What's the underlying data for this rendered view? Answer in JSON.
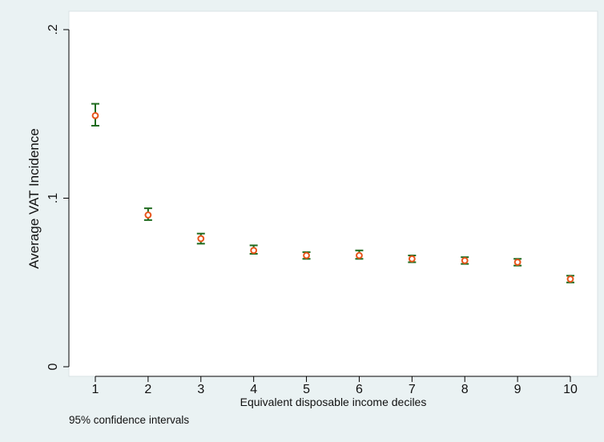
{
  "chart_data": {
    "type": "scatter",
    "title": "",
    "xlabel": "Equivalent disposable income deciles",
    "ylabel": "Average VAT Incidence",
    "note": "95% confidence intervals",
    "x": [
      1,
      2,
      3,
      4,
      5,
      6,
      7,
      8,
      9,
      10
    ],
    "x_tick_labels": [
      "1",
      "2",
      "3",
      "4",
      "5",
      "6",
      "7",
      "8",
      "9",
      "10"
    ],
    "y_ticks": [
      0,
      0.1,
      0.2
    ],
    "y_tick_labels": [
      "0",
      ".1",
      ".2"
    ],
    "ylim": [
      0,
      0.2
    ],
    "xlim": [
      0.5,
      10.5
    ],
    "grid": false,
    "series": [
      {
        "values": [
          0.149,
          0.09,
          0.076,
          0.069,
          0.066,
          0.066,
          0.064,
          0.063,
          0.062,
          0.052
        ],
        "ci_low": [
          0.143,
          0.087,
          0.073,
          0.067,
          0.064,
          0.064,
          0.062,
          0.061,
          0.06,
          0.05
        ],
        "ci_high": [
          0.156,
          0.094,
          0.079,
          0.072,
          0.068,
          0.069,
          0.066,
          0.065,
          0.064,
          0.054
        ]
      }
    ],
    "colors": {
      "background": "#eaf2f3",
      "plot_area": "#ffffff",
      "ci_bars": "#1f6b1f",
      "marker": "#e8551b"
    }
  }
}
